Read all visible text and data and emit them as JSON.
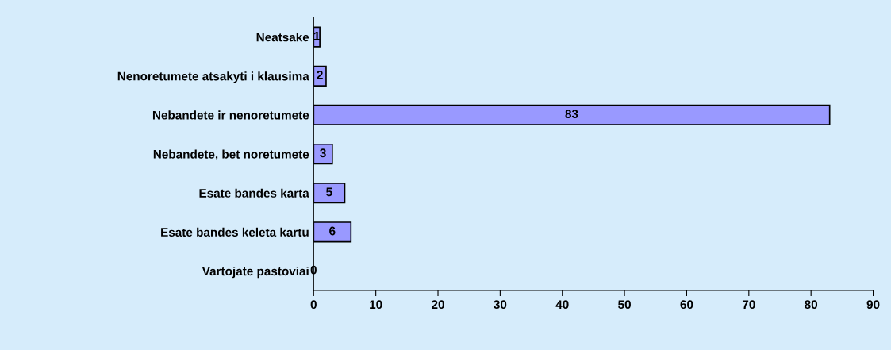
{
  "chart_data": {
    "type": "bar",
    "orientation": "horizontal",
    "categories": [
      "Neatsake",
      "Nenoretumete atsakyti i klausima",
      "Nebandete ir nenoretumete",
      "Nebandete, bet noretumete",
      "Esate bandes karta",
      "Esate bandes keleta kartu",
      "Vartojate pastoviai"
    ],
    "values": [
      1,
      2,
      83,
      3,
      5,
      6,
      0
    ],
    "color": "#9999ff",
    "data_labels": true,
    "xlim": [
      0,
      90
    ],
    "xticks": [
      0,
      10,
      20,
      30,
      40,
      50,
      60,
      70,
      80,
      90
    ],
    "grid": false,
    "legend": false
  }
}
